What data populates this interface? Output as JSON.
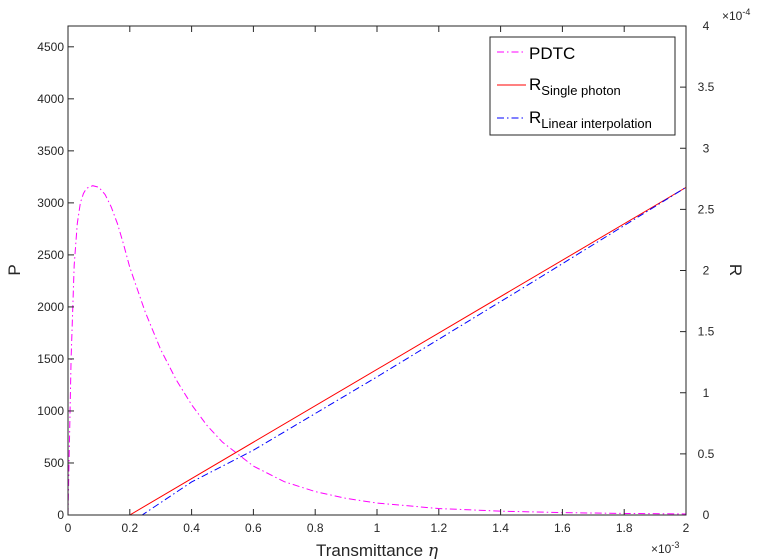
{
  "chart_data": {
    "type": "line",
    "xlabel": "Transmittance",
    "xlabel_symbol": "η",
    "ylabel_left": "P",
    "ylabel_right": "R",
    "x_exponent_base": "×10",
    "x_exponent_power": "-3",
    "y2_exponent_base": "×10",
    "y2_exponent_power": "-4",
    "xlim": [
      0,
      2
    ],
    "ylim_left": [
      0,
      4700
    ],
    "ylim_right": [
      0,
      4
    ],
    "xticks": [
      0,
      0.2,
      0.4,
      0.6,
      0.8,
      1,
      1.2,
      1.4,
      1.6,
      1.8,
      2
    ],
    "xtick_labels": [
      "0",
      "0.2",
      "0.4",
      "0.6",
      "0.8",
      "1",
      "1.2",
      "1.4",
      "1.6",
      "1.8",
      "2"
    ],
    "yticks_left": [
      0,
      500,
      1000,
      1500,
      2000,
      2500,
      3000,
      3500,
      4000,
      4500
    ],
    "ytick_labels_left": [
      "0",
      "500",
      "1000",
      "1500",
      "2000",
      "2500",
      "3000",
      "3500",
      "4000",
      "4500"
    ],
    "yticks_right": [
      0,
      0.5,
      1,
      1.5,
      2,
      2.5,
      3,
      3.5,
      4
    ],
    "ytick_labels_right": [
      "0",
      "0.5",
      "1",
      "1.5",
      "2",
      "2.5",
      "3",
      "3.5",
      "4"
    ],
    "grid": false,
    "legend_position": "top-right",
    "legend": [
      {
        "main": "PDTC",
        "sub": ""
      },
      {
        "main": "R",
        "sub": "Single photon"
      },
      {
        "main": "R",
        "sub": "Linear interpolation"
      }
    ],
    "series": [
      {
        "name": "PDTC",
        "axis": "left",
        "color": "#ff00ff",
        "style": "dashdot",
        "x": [
          0,
          0.01,
          0.02,
          0.03,
          0.04,
          0.05,
          0.06,
          0.08,
          0.1,
          0.12,
          0.14,
          0.16,
          0.18,
          0.2,
          0.25,
          0.3,
          0.35,
          0.4,
          0.45,
          0.5,
          0.6,
          0.7,
          0.8,
          0.9,
          1.0,
          1.2,
          1.4,
          1.6,
          1.8,
          2.0
        ],
        "y": [
          0,
          1500,
          2400,
          2800,
          3000,
          3090,
          3140,
          3165,
          3150,
          3080,
          2960,
          2800,
          2600,
          2380,
          1950,
          1590,
          1300,
          1060,
          860,
          700,
          470,
          320,
          225,
          160,
          115,
          62,
          37,
          23,
          15,
          10
        ]
      },
      {
        "name": "R Single photon",
        "axis": "right",
        "color": "#ff0000",
        "style": "solid",
        "x": [
          0,
          0.2,
          2.0
        ],
        "y": [
          0,
          0,
          2.68
        ]
      },
      {
        "name": "R Linear interpolation",
        "axis": "right",
        "color": "#0000ff",
        "style": "dashdot",
        "x": [
          0,
          0.24,
          0.4,
          0.6,
          0.8,
          1.0,
          1.5,
          2.0
        ],
        "y": [
          0,
          0,
          0.27,
          0.53,
          0.83,
          1.13,
          1.9,
          2.68
        ]
      }
    ]
  }
}
